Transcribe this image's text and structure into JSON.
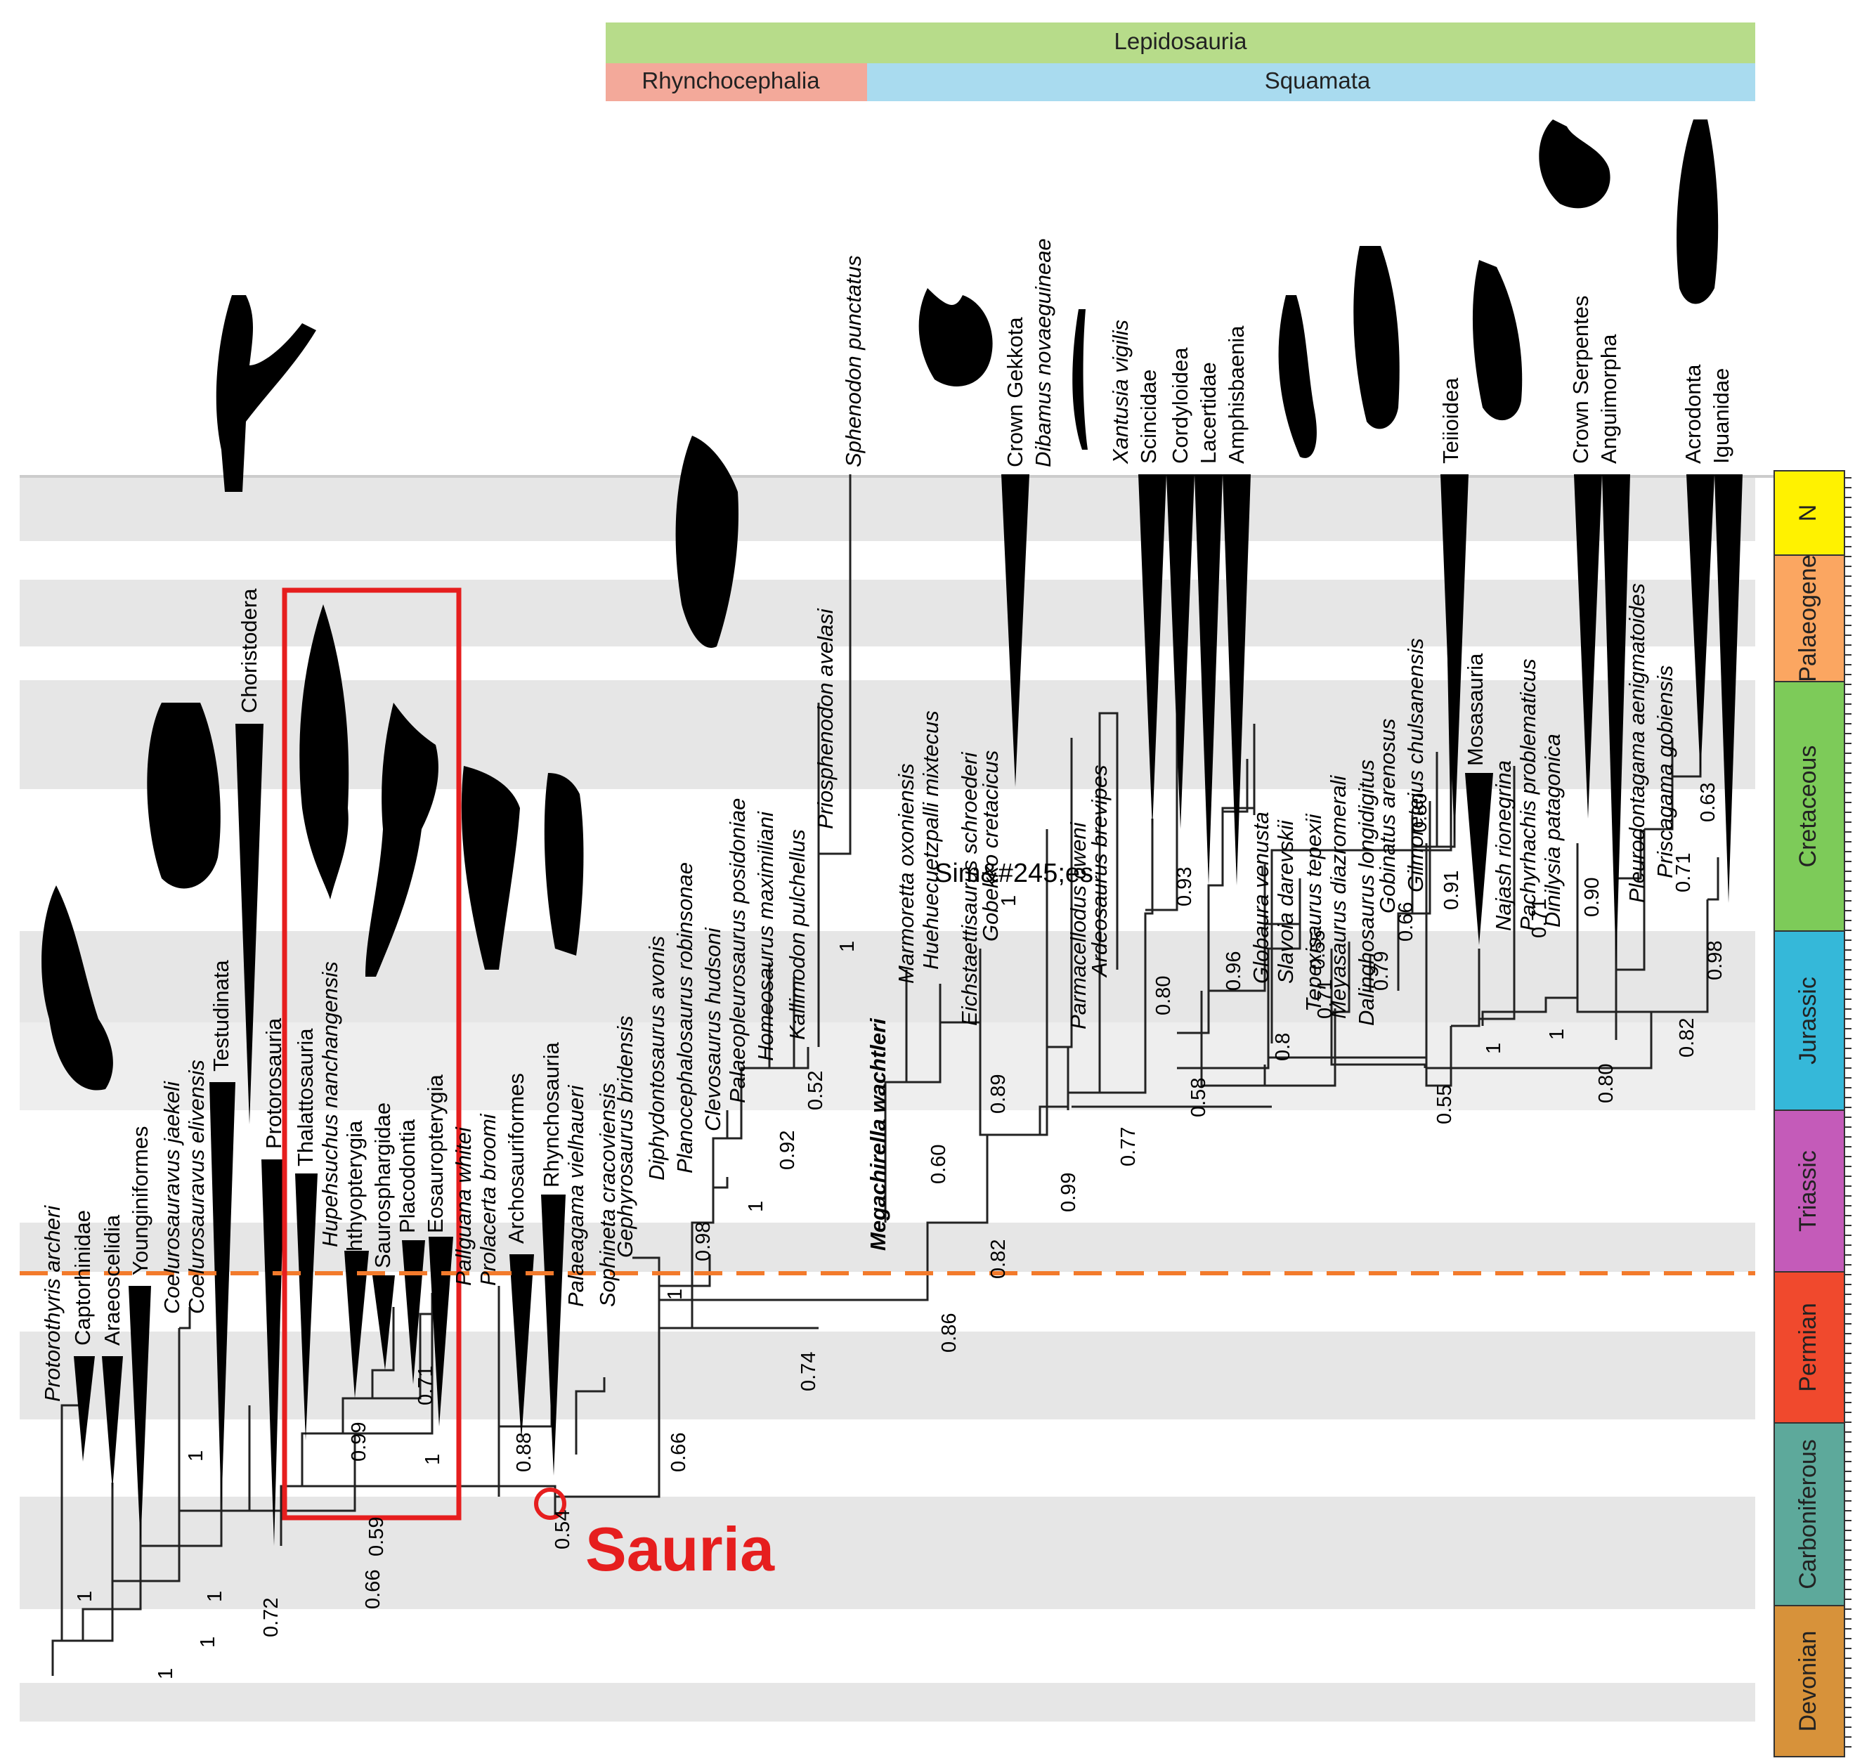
{
  "clade_bars": {
    "lepidosauria": {
      "label": "Lepidosauria",
      "color": "#b7dc8a"
    },
    "rhynchocephalia": {
      "label": "Rhynchocephalia",
      "color": "#f3a99a"
    },
    "squamata": {
      "label": "Squamata",
      "color": "#a9dbef"
    }
  },
  "periods": [
    {
      "label": "N",
      "color": "#fff200"
    },
    {
      "label": "Palaeogene",
      "color": "#fba661"
    },
    {
      "label": "Cretaceous",
      "color": "#7dcb59"
    },
    {
      "label": "Jurassic",
      "color": "#35b8d9"
    },
    {
      "label": "Triassic",
      "color": "#c45bb9"
    },
    {
      "label": "Permian",
      "color": "#f0492d"
    },
    {
      "label": "Carboniferous",
      "color": "#5da99b"
    },
    {
      "label": "Devonian",
      "color": "#d7923a"
    }
  ],
  "highlight": {
    "label": "Sauria",
    "color": "#e61e1e"
  },
  "stray_text": "Sim&#245;es",
  "boundary_color": "#f37a2b",
  "taxa": [
    "Protorothyris archeri",
    "Captorhinidae",
    "Araeoscelidia",
    "Younginiformes",
    "Coelurosauravus jaekeli",
    "Coelurosauravus elivensis",
    "Testudinata",
    "Choristodera",
    "Protorosauria",
    "Thalattosauria",
    "Hupehsuchus nanchangensis",
    "Ichthyopterygia",
    "Saurosphargidae",
    "Placodontia",
    "Eosauropterygia",
    "Pallguana whitei",
    "Prolacerta broomi",
    "Archosauriformes",
    "Rhynchosauria",
    "Palaeagama vielhaueri",
    "Sophineta cracoviensis",
    "Gephyrosaurus bridensis",
    "Diphydontosaurus avonis",
    "Planocephalosaurus robinsonae",
    "Clevosaurus hudsoni",
    "Palaeopleurosaurus posidoniae",
    "Homeosaurus maximiliani",
    "Kallimodon pulchellus",
    "Priosphenodon avelasi",
    "Sphenodon punctatus",
    "Megachirella wachtleri",
    "Marmoretta oxoniensis",
    "Huehuecuetzpalli mixtecus",
    "Eichstaettisaurus schroederi",
    "Gobekko cretacicus",
    "Crown Gekkota",
    "Dibamus novaeguineae",
    "Parmacellodus oweni",
    "Ardeosaurus brevipes",
    "Xantusia vigilis",
    "Scincidae",
    "Cordyloidea",
    "Lacertidae",
    "Amphisbaenia",
    "Globaura venusta",
    "Slavoia darevskii",
    "Tepexisaurus tepexii",
    "Meyasaurus diazromerali",
    "Dalinghosaurus longidigitus",
    "Gobinatus arenosus",
    "Gilmoreteius chulsanensis",
    "Teiioidea",
    "Mosasauria",
    "Najash rionegrina",
    "Pachyrhachis problematicus",
    "Dinilysia patagonica",
    "Crown Serpentes",
    "Anguimorpha",
    "Pleurodontagama aenigmatoides",
    "Priscagama gobiensis",
    "Acrodonta",
    "Iguanidae"
  ],
  "supports": [
    "1",
    "1",
    "1",
    "1",
    "0.72",
    "1",
    "0.66",
    "0.99",
    "0.59",
    "0.71",
    "1",
    "0.88",
    "0.54",
    "0.66",
    "0.74",
    "1",
    "0.98",
    "1",
    "0.92",
    "0.52",
    "1",
    "0.86",
    "0.82",
    "0.60",
    "0.89",
    "0.99",
    "1",
    "0.77",
    "0.58",
    "0.80",
    "0.93",
    "0.96",
    "0.8",
    "0.71",
    "0.55",
    "0.79",
    "0.66",
    "0.80",
    "0.91",
    "0.55",
    "1",
    "0.71",
    "1",
    "0.90",
    "0.80",
    "0.82",
    "0.71",
    "0.63",
    "0.98"
  ]
}
